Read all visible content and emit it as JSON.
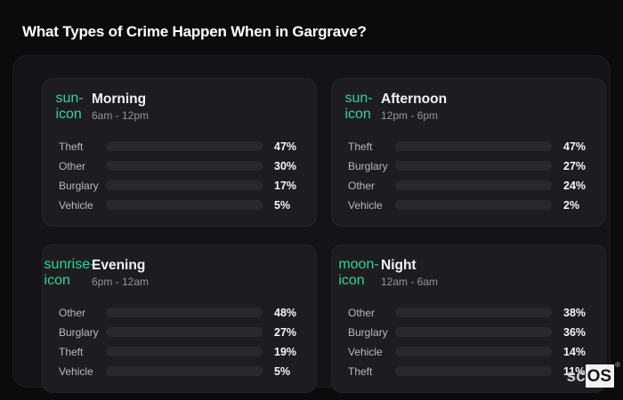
{
  "page": {
    "title": "What Types of Crime Happen When in Gargrave?",
    "background": "#0b0b0d",
    "container_bg": "#141418",
    "card_bg": "#1d1d21",
    "icon_accent_color": "#34d399",
    "bar_track_color": "#28282d"
  },
  "logo": {
    "prefix": "sc",
    "suffix": "OS",
    "registered_mark": "®"
  },
  "chart_data": {
    "type": "bar",
    "orientation": "horizontal",
    "unit": "%",
    "xlim": [
      0,
      100
    ],
    "grid": false,
    "legend": false,
    "title": "What Types of Crime Happen When in Gargrave?",
    "series_colors": {
      "Theft": "#a855f7",
      "Other": "#64788f",
      "Burglary": "#e8781a",
      "Vehicle": "#3b82f6"
    },
    "panels": [
      {
        "title": "Morning",
        "time_range": "6am - 12pm",
        "icon": "sun-icon",
        "rows": [
          {
            "label": "Theft",
            "value": 47,
            "display": "47%",
            "color": "#a855f7"
          },
          {
            "label": "Other",
            "value": 30,
            "display": "30%",
            "color": "#64788f"
          },
          {
            "label": "Burglary",
            "value": 17,
            "display": "17%",
            "color": "#e8781a"
          },
          {
            "label": "Vehicle",
            "value": 5,
            "display": "5%",
            "color": "#3b82f6"
          }
        ]
      },
      {
        "title": "Afternoon",
        "time_range": "12pm - 6pm",
        "icon": "sun-icon",
        "rows": [
          {
            "label": "Theft",
            "value": 47,
            "display": "47%",
            "color": "#a855f7"
          },
          {
            "label": "Burglary",
            "value": 27,
            "display": "27%",
            "color": "#e8781a"
          },
          {
            "label": "Other",
            "value": 24,
            "display": "24%",
            "color": "#64788f"
          },
          {
            "label": "Vehicle",
            "value": 2,
            "display": "2%",
            "color": "#3b82f6"
          }
        ]
      },
      {
        "title": "Evening",
        "time_range": "6pm - 12am",
        "icon": "sunrise-icon",
        "rows": [
          {
            "label": "Other",
            "value": 48,
            "display": "48%",
            "color": "#64788f"
          },
          {
            "label": "Burglary",
            "value": 27,
            "display": "27%",
            "color": "#e8781a"
          },
          {
            "label": "Theft",
            "value": 19,
            "display": "19%",
            "color": "#a855f7"
          },
          {
            "label": "Vehicle",
            "value": 5,
            "display": "5%",
            "color": "#3b82f6"
          }
        ]
      },
      {
        "title": "Night",
        "time_range": "12am - 6am",
        "icon": "moon-icon",
        "rows": [
          {
            "label": "Other",
            "value": 38,
            "display": "38%",
            "color": "#64788f"
          },
          {
            "label": "Burglary",
            "value": 36,
            "display": "36%",
            "color": "#e8781a"
          },
          {
            "label": "Vehicle",
            "value": 14,
            "display": "14%",
            "color": "#3b82f6"
          },
          {
            "label": "Theft",
            "value": 11,
            "display": "11%",
            "color": "#a855f7"
          }
        ]
      }
    ]
  }
}
